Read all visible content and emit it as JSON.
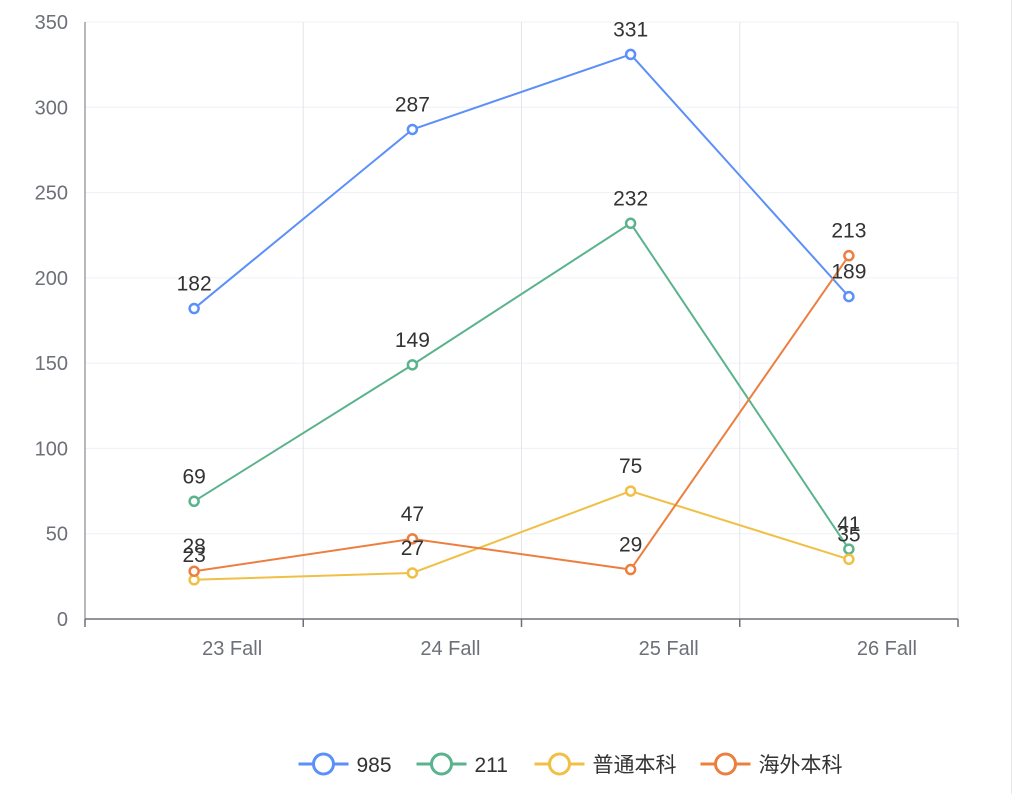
{
  "chart_data": {
    "type": "line",
    "categories": [
      "23 Fall",
      "24 Fall",
      "25 Fall",
      "26 Fall"
    ],
    "ylim": [
      0,
      350
    ],
    "yticks": [
      0,
      50,
      100,
      150,
      200,
      250,
      300,
      350
    ],
    "grid": true,
    "legend_position": "bottom-center",
    "series": [
      {
        "name": "985",
        "color": "#5b8ff9",
        "values": [
          182,
          287,
          331,
          189
        ]
      },
      {
        "name": "211",
        "color": "#5ab38d",
        "values": [
          69,
          149,
          232,
          41
        ]
      },
      {
        "name": "普通本科",
        "color": "#f0bf45",
        "values": [
          23,
          27,
          75,
          35
        ]
      },
      {
        "name": "海外本科",
        "color": "#ec7f3f",
        "values": [
          28,
          47,
          29,
          213
        ]
      }
    ]
  }
}
